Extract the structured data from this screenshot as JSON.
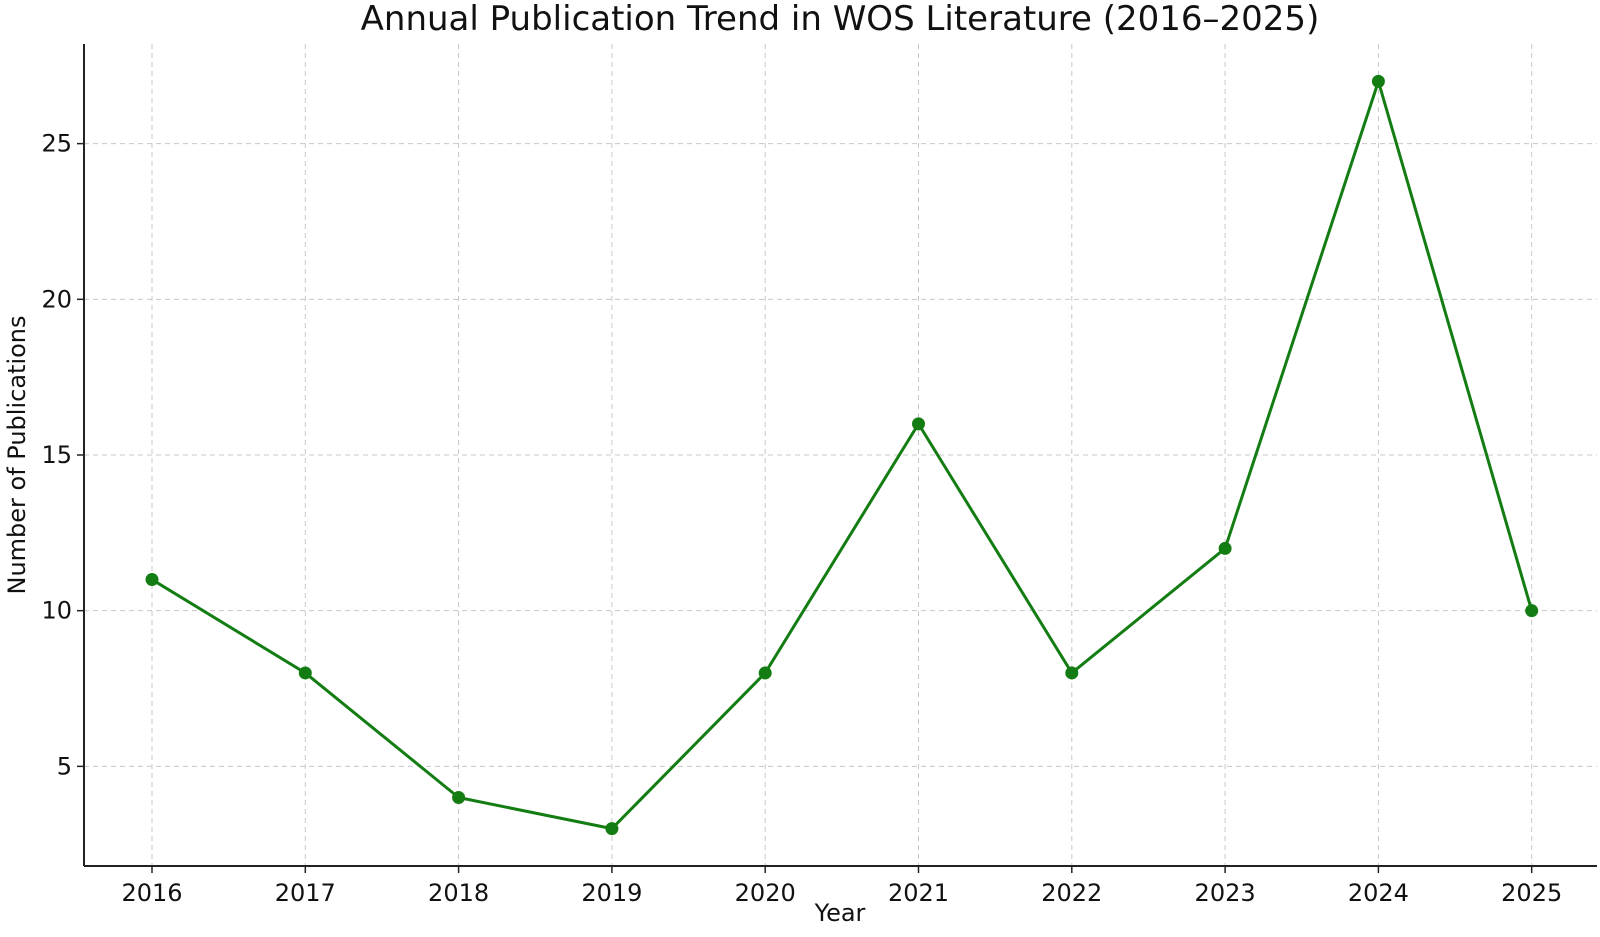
{
  "chart_data": {
    "type": "line",
    "title": "Annual Publication Trend in WOS Literature (2016–2025)",
    "xlabel": "Year",
    "ylabel": "Number of Publications",
    "categories": [
      "2016",
      "2017",
      "2018",
      "2019",
      "2020",
      "2021",
      "2022",
      "2023",
      "2024",
      "2025"
    ],
    "series": [
      {
        "values": [
          11,
          8,
          4,
          3,
          8,
          16,
          8,
          12,
          27,
          10
        ],
        "color": "#137d13",
        "marker": "circle"
      }
    ],
    "y_ticks": [
      "5",
      "10",
      "15",
      "20",
      "25"
    ],
    "ylim": [
      1.8,
      28.2
    ],
    "grid": true
  }
}
